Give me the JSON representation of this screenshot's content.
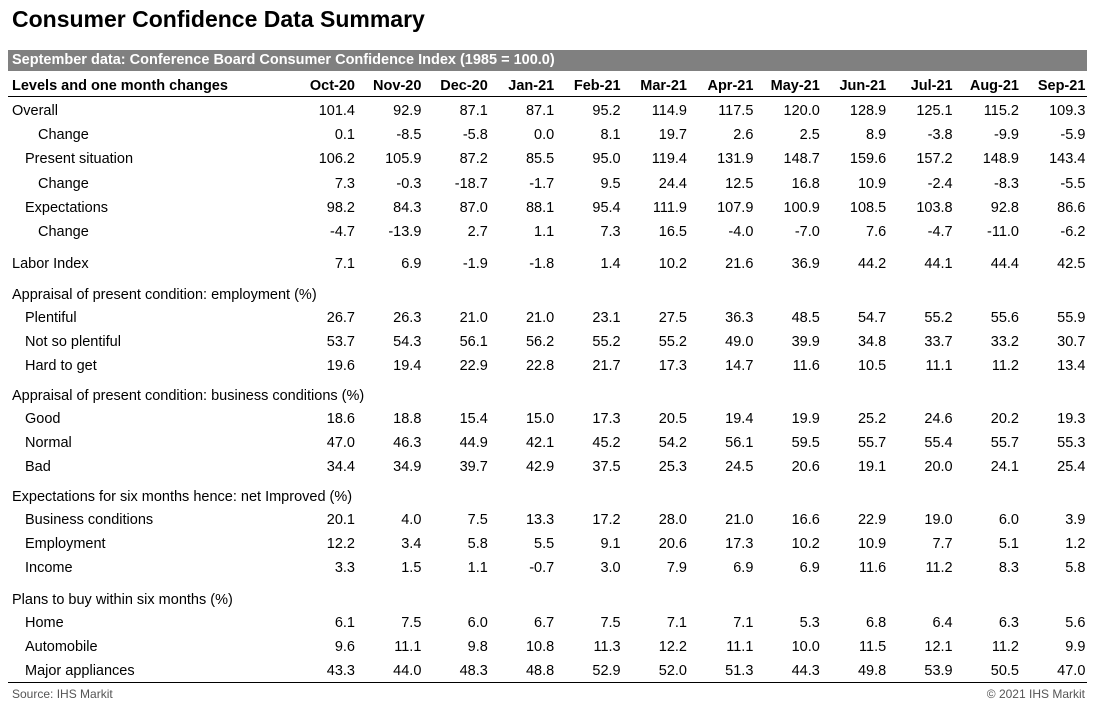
{
  "title": "Consumer Confidence Data Summary",
  "table": {
    "banner": "September data: Conference Board Consumer Confidence Index (1985 = 100.0)",
    "header": {
      "label": "Levels and one month changes",
      "columns": [
        "Oct-20",
        "Nov-20",
        "Dec-20",
        "Jan-21",
        "Feb-21",
        "Mar-21",
        "Apr-21",
        "May-21",
        "Jun-21",
        "Jul-21",
        "Aug-21",
        "Sep-21"
      ]
    },
    "blocks": [
      {
        "rows": [
          {
            "label": "Overall",
            "values": [
              "101.4",
              "92.9",
              "87.1",
              "87.1",
              "95.2",
              "114.9",
              "117.5",
              "120.0",
              "128.9",
              "125.1",
              "115.2",
              "109.3"
            ]
          },
          {
            "label": "Change",
            "values": [
              "0.1",
              "-8.5",
              "-5.8",
              "0.0",
              "8.1",
              "19.7",
              "2.6",
              "2.5",
              "8.9",
              "-3.8",
              "-9.9",
              "-5.9"
            ]
          },
          {
            "label": "Present situation",
            "values": [
              "106.2",
              "105.9",
              "87.2",
              "85.5",
              "95.0",
              "119.4",
              "131.9",
              "148.7",
              "159.6",
              "157.2",
              "148.9",
              "143.4"
            ]
          },
          {
            "label": "Change",
            "values": [
              "7.3",
              "-0.3",
              "-18.7",
              "-1.7",
              "9.5",
              "24.4",
              "12.5",
              "16.8",
              "10.9",
              "-2.4",
              "-8.3",
              "-5.5"
            ]
          },
          {
            "label": "Expectations",
            "values": [
              "98.2",
              "84.3",
              "87.0",
              "88.1",
              "95.4",
              "111.9",
              "107.9",
              "100.9",
              "108.5",
              "103.8",
              "92.8",
              "86.6"
            ]
          },
          {
            "label": "Change",
            "values": [
              "-4.7",
              "-13.9",
              "2.7",
              "1.1",
              "7.3",
              "16.5",
              "-4.0",
              "-7.0",
              "7.6",
              "-4.7",
              "-11.0",
              "-6.2"
            ]
          }
        ]
      },
      {
        "rows": [
          {
            "label": "Labor Index",
            "values": [
              "7.1",
              "6.9",
              "-1.9",
              "-1.8",
              "1.4",
              "10.2",
              "21.6",
              "36.9",
              "44.2",
              "44.1",
              "44.4",
              "42.5"
            ]
          }
        ]
      },
      {
        "heading": "Appraisal of present condition: employment (%)",
        "rows": [
          {
            "label": "Plentiful",
            "values": [
              "26.7",
              "26.3",
              "21.0",
              "21.0",
              "23.1",
              "27.5",
              "36.3",
              "48.5",
              "54.7",
              "55.2",
              "55.6",
              "55.9"
            ]
          },
          {
            "label": "Not so plentiful",
            "values": [
              "53.7",
              "54.3",
              "56.1",
              "56.2",
              "55.2",
              "55.2",
              "49.0",
              "39.9",
              "34.8",
              "33.7",
              "33.2",
              "30.7"
            ]
          },
          {
            "label": "Hard to get",
            "values": [
              "19.6",
              "19.4",
              "22.9",
              "22.8",
              "21.7",
              "17.3",
              "14.7",
              "11.6",
              "10.5",
              "11.1",
              "11.2",
              "13.4"
            ]
          }
        ]
      },
      {
        "heading": "Appraisal of present condition: business conditions (%)",
        "rows": [
          {
            "label": "Good",
            "values": [
              "18.6",
              "18.8",
              "15.4",
              "15.0",
              "17.3",
              "20.5",
              "19.4",
              "19.9",
              "25.2",
              "24.6",
              "20.2",
              "19.3"
            ]
          },
          {
            "label": "Normal",
            "values": [
              "47.0",
              "46.3",
              "44.9",
              "42.1",
              "45.2",
              "54.2",
              "56.1",
              "59.5",
              "55.7",
              "55.4",
              "55.7",
              "55.3"
            ]
          },
          {
            "label": "Bad",
            "values": [
              "34.4",
              "34.9",
              "39.7",
              "42.9",
              "37.5",
              "25.3",
              "24.5",
              "20.6",
              "19.1",
              "20.0",
              "24.1",
              "25.4"
            ]
          }
        ]
      },
      {
        "heading": "Expectations for six months hence: net Improved (%)",
        "rows": [
          {
            "label": "Business conditions",
            "values": [
              "20.1",
              "4.0",
              "7.5",
              "13.3",
              "17.2",
              "28.0",
              "21.0",
              "16.6",
              "22.9",
              "19.0",
              "6.0",
              "3.9"
            ]
          },
          {
            "label": "Employment",
            "values": [
              "12.2",
              "3.4",
              "5.8",
              "5.5",
              "9.1",
              "20.6",
              "17.3",
              "10.2",
              "10.9",
              "7.7",
              "5.1",
              "1.2"
            ]
          },
          {
            "label": "Income",
            "values": [
              "3.3",
              "1.5",
              "1.1",
              "-0.7",
              "3.0",
              "7.9",
              "6.9",
              "6.9",
              "11.6",
              "11.2",
              "8.3",
              "5.8"
            ]
          }
        ]
      },
      {
        "heading": "Plans to buy within six months (%)",
        "rows": [
          {
            "label": "Home",
            "values": [
              "6.1",
              "7.5",
              "6.0",
              "6.7",
              "7.5",
              "7.1",
              "7.1",
              "5.3",
              "6.8",
              "6.4",
              "6.3",
              "5.6"
            ]
          },
          {
            "label": "Automobile",
            "values": [
              "9.6",
              "11.1",
              "9.8",
              "10.8",
              "11.3",
              "12.2",
              "11.1",
              "10.0",
              "11.5",
              "12.1",
              "11.2",
              "9.9"
            ]
          },
          {
            "label": "Major appliances",
            "values": [
              "43.3",
              "44.0",
              "48.3",
              "48.8",
              "52.9",
              "52.0",
              "51.3",
              "44.3",
              "49.8",
              "53.9",
              "50.5",
              "47.0"
            ]
          }
        ]
      }
    ]
  },
  "footer": {
    "source": "Source: IHS Markit",
    "copyright": "© 2021 IHS Markit"
  }
}
